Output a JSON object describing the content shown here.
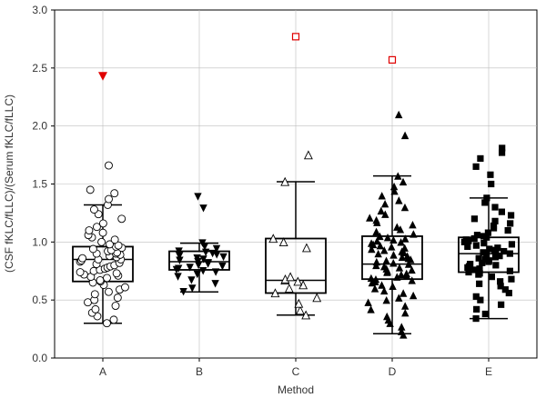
{
  "chart_data": {
    "type": "box",
    "title": "",
    "xlabel": "Method",
    "ylabel": "(CSF fKLC/fLLC)/(Serum fKLC/fLLC)",
    "ylim": [
      0,
      3.0
    ],
    "yticks": [
      0.0,
      0.5,
      1.0,
      1.5,
      2.0,
      2.5,
      3.0
    ],
    "ytick_labels": [
      "0.0",
      "0.5",
      "1.0",
      "1.5",
      "2.0",
      "2.5",
      "3.0"
    ],
    "grid": true,
    "categories": [
      "A",
      "B",
      "C",
      "D",
      "E"
    ],
    "groups": [
      {
        "name": "A",
        "marker": "open-circle",
        "box": {
          "q1": 0.66,
          "median": 0.85,
          "q3": 0.96,
          "whisker_low": 0.3,
          "whisker_high": 1.32
        },
        "points": [
          0.3,
          0.33,
          0.36,
          0.39,
          0.42,
          0.45,
          0.48,
          0.5,
          0.52,
          0.55,
          0.57,
          0.59,
          0.61,
          0.63,
          0.65,
          0.66,
          0.67,
          0.69,
          0.7,
          0.71,
          0.72,
          0.73,
          0.74,
          0.75,
          0.76,
          0.77,
          0.78,
          0.79,
          0.8,
          0.81,
          0.82,
          0.83,
          0.84,
          0.85,
          0.85,
          0.86,
          0.87,
          0.88,
          0.89,
          0.9,
          0.9,
          0.91,
          0.92,
          0.93,
          0.94,
          0.95,
          0.96,
          0.97,
          0.98,
          1.0,
          1.02,
          1.04,
          1.06,
          1.08,
          1.1,
          1.13,
          1.16,
          1.2,
          1.24,
          1.28,
          1.32,
          1.37,
          1.42,
          1.45,
          1.66
        ],
        "outliers": [
          {
            "value": 2.43,
            "marker": "red-triangle-down"
          }
        ]
      },
      {
        "name": "B",
        "marker": "filled-triangle-down",
        "box": {
          "q1": 0.76,
          "median": 0.83,
          "q3": 0.92,
          "whisker_low": 0.57,
          "whisker_high": 0.99
        },
        "points": [
          0.57,
          0.6,
          0.64,
          0.67,
          0.7,
          0.72,
          0.74,
          0.75,
          0.76,
          0.77,
          0.78,
          0.79,
          0.8,
          0.81,
          0.82,
          0.83,
          0.84,
          0.85,
          0.86,
          0.87,
          0.88,
          0.89,
          0.9,
          0.91,
          0.92,
          0.94,
          0.96,
          0.99,
          1.29,
          1.39
        ]
      },
      {
        "name": "C",
        "marker": "open-triangle-up",
        "box": {
          "q1": 0.56,
          "median": 0.67,
          "q3": 1.03,
          "whisker_low": 0.37,
          "whisker_high": 1.52
        },
        "points": [
          0.37,
          0.41,
          0.47,
          0.52,
          0.56,
          0.6,
          0.63,
          0.66,
          0.67,
          0.68,
          0.7,
          0.95,
          1.0,
          1.03,
          1.52,
          1.75
        ],
        "outliers": [
          {
            "value": 2.77,
            "marker": "red-open-square"
          }
        ]
      },
      {
        "name": "D",
        "marker": "filled-triangle-up",
        "box": {
          "q1": 0.68,
          "median": 0.81,
          "q3": 1.05,
          "whisker_low": 0.21,
          "whisker_high": 1.57
        },
        "points": [
          0.2,
          0.23,
          0.27,
          0.3,
          0.33,
          0.36,
          0.39,
          0.42,
          0.45,
          0.48,
          0.5,
          0.52,
          0.54,
          0.56,
          0.58,
          0.6,
          0.62,
          0.63,
          0.65,
          0.66,
          0.67,
          0.68,
          0.69,
          0.7,
          0.71,
          0.72,
          0.73,
          0.74,
          0.75,
          0.76,
          0.77,
          0.78,
          0.79,
          0.8,
          0.81,
          0.82,
          0.83,
          0.84,
          0.85,
          0.86,
          0.87,
          0.88,
          0.89,
          0.9,
          0.91,
          0.92,
          0.93,
          0.94,
          0.95,
          0.96,
          0.97,
          0.98,
          0.99,
          1.0,
          1.01,
          1.02,
          1.03,
          1.04,
          1.05,
          1.07,
          1.09,
          1.11,
          1.13,
          1.15,
          1.17,
          1.19,
          1.21,
          1.24,
          1.27,
          1.3,
          1.33,
          1.36,
          1.4,
          1.44,
          1.48,
          1.52,
          1.57,
          1.92,
          2.1
        ],
        "outliers": [
          {
            "value": 2.57,
            "marker": "red-open-square"
          }
        ]
      },
      {
        "name": "E",
        "marker": "filled-square",
        "box": {
          "q1": 0.74,
          "median": 0.9,
          "q3": 1.04,
          "whisker_low": 0.34,
          "whisker_high": 1.38
        },
        "points": [
          0.34,
          0.38,
          0.42,
          0.46,
          0.5,
          0.53,
          0.56,
          0.59,
          0.62,
          0.64,
          0.66,
          0.68,
          0.7,
          0.72,
          0.73,
          0.74,
          0.75,
          0.76,
          0.77,
          0.78,
          0.79,
          0.8,
          0.81,
          0.82,
          0.83,
          0.84,
          0.85,
          0.86,
          0.87,
          0.88,
          0.89,
          0.9,
          0.9,
          0.91,
          0.92,
          0.93,
          0.94,
          0.95,
          0.96,
          0.97,
          0.98,
          0.99,
          1.0,
          1.01,
          1.02,
          1.03,
          1.04,
          1.05,
          1.06,
          1.08,
          1.1,
          1.12,
          1.14,
          1.16,
          1.18,
          1.2,
          1.23,
          1.26,
          1.3,
          1.34,
          1.38,
          1.5,
          1.58,
          1.65,
          1.72,
          1.77,
          1.81
        ]
      }
    ]
  }
}
